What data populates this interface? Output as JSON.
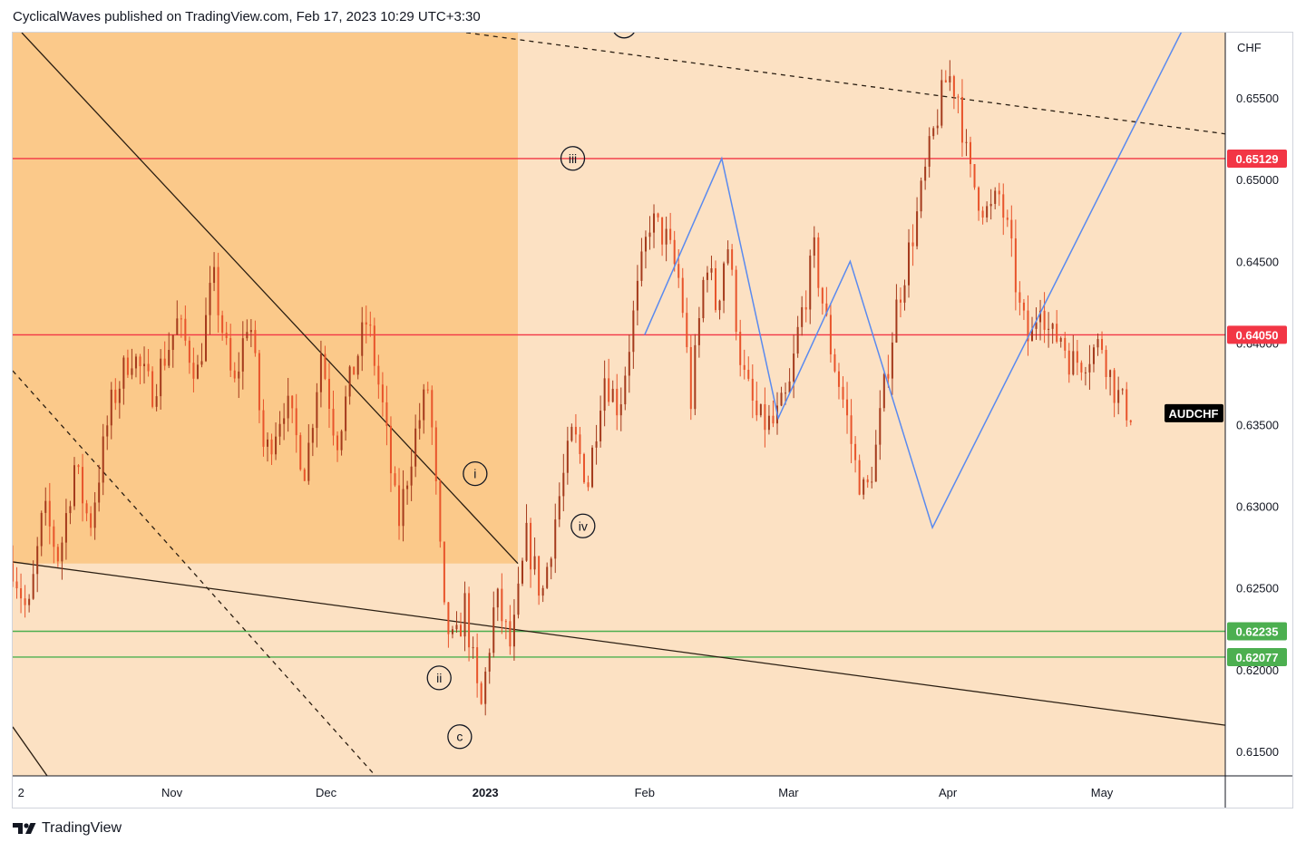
{
  "header": {
    "caption": "CyclicalWaves published on TradingView.com, Feb 17, 2023 10:29 UTC+3:30"
  },
  "footer": {
    "brand": "TradingView",
    "logo_icon": "tradingview-logo-icon"
  },
  "colors": {
    "background": "#fce1c3",
    "shaded_zone": "#fbc98a",
    "candle_up": "#a43a1c",
    "candle_down": "#e8542b",
    "resistance": "#f23645",
    "support": "#4caf50",
    "projection": "#5a8aef",
    "trendline": "#2a1e12"
  },
  "chart_data": {
    "type": "candlestick",
    "symbol": "AUDCHF",
    "currency": "CHF",
    "y_ticks": [
      "0.65500",
      "0.65000",
      "0.64500",
      "0.64000",
      "0.63500",
      "0.63000",
      "0.62500",
      "0.62000",
      "0.61500"
    ],
    "y_tick_values": [
      0.655,
      0.65,
      0.645,
      0.64,
      0.635,
      0.63,
      0.625,
      0.62,
      0.615
    ],
    "ylim": [
      0.6135,
      0.659
    ],
    "x_ticks": [
      {
        "label": "2",
        "date": "2022-10-02"
      },
      {
        "label": "Nov",
        "date": "2022-11-01"
      },
      {
        "label": "Dec",
        "date": "2022-12-01"
      },
      {
        "label": "2023",
        "date": "2023-01-01"
      },
      {
        "label": "Feb",
        "date": "2023-02-01"
      },
      {
        "label": "Mar",
        "date": "2023-03-01"
      },
      {
        "label": "Apr",
        "date": "2023-04-01"
      },
      {
        "label": "May",
        "date": "2023-05-01"
      }
    ],
    "xlim": [
      "2022-10-01",
      "2023-05-25"
    ],
    "last_price_label": "AUDCHF",
    "last_price": 0.6357,
    "horizontal_levels": [
      {
        "label": "0.65129",
        "value": 0.65129,
        "role": "resistance"
      },
      {
        "label": "0.64050",
        "value": 0.6405,
        "role": "resistance"
      },
      {
        "label": "0.62235",
        "value": 0.62235,
        "role": "support"
      },
      {
        "label": "0.62077",
        "value": 0.62077,
        "role": "support"
      },
      {
        "label": "",
        "value": 0.65935,
        "role": "resistance"
      }
    ],
    "price_path": [
      [
        "2022-10-01",
        0.6265
      ],
      [
        "2022-10-04",
        0.6232
      ],
      [
        "2022-10-07",
        0.6298
      ],
      [
        "2022-10-10",
        0.6268
      ],
      [
        "2022-10-13",
        0.6325
      ],
      [
        "2022-10-16",
        0.6288
      ],
      [
        "2022-10-20",
        0.636
      ],
      [
        "2022-10-24",
        0.6395
      ],
      [
        "2022-10-28",
        0.637
      ],
      [
        "2022-11-02",
        0.6412
      ],
      [
        "2022-11-06",
        0.6382
      ],
      [
        "2022-11-09",
        0.644
      ],
      [
        "2022-11-13",
        0.637
      ],
      [
        "2022-11-16",
        0.642
      ],
      [
        "2022-11-19",
        0.633
      ],
      [
        "2022-11-23",
        0.6365
      ],
      [
        "2022-11-27",
        0.6322
      ],
      [
        "2022-11-30",
        0.6395
      ],
      [
        "2022-12-03",
        0.634
      ],
      [
        "2022-12-06",
        0.638
      ],
      [
        "2022-12-09",
        0.6415
      ],
      [
        "2022-12-12",
        0.636
      ],
      [
        "2022-12-15",
        0.6288
      ],
      [
        "2022-12-18",
        0.634
      ],
      [
        "2022-12-21",
        0.6375
      ],
      [
        "2022-12-24",
        0.6232
      ],
      [
        "2022-12-26",
        0.6212
      ],
      [
        "2022-12-28",
        0.624
      ],
      [
        "2022-12-31",
        0.6172
      ],
      [
        "2023-01-03",
        0.6245
      ],
      [
        "2023-01-06",
        0.6212
      ],
      [
        "2023-01-09",
        0.628
      ],
      [
        "2023-01-12",
        0.6245
      ],
      [
        "2023-01-15",
        0.63
      ],
      [
        "2023-01-18",
        0.6345
      ],
      [
        "2023-01-21",
        0.6315
      ],
      [
        "2023-01-24",
        0.6382
      ],
      [
        "2023-01-27",
        0.636
      ],
      [
        "2023-01-30",
        0.642
      ],
      [
        "2023-02-02",
        0.6475
      ],
      [
        "2023-02-05",
        0.6465
      ],
      [
        "2023-02-08",
        0.6435
      ],
      [
        "2023-02-10",
        0.6365
      ],
      [
        "2023-02-13",
        0.6455
      ],
      [
        "2023-02-15",
        0.642
      ],
      [
        "2023-02-17",
        0.6465
      ],
      [
        "2023-02-20",
        0.6382
      ],
      [
        "2023-02-23",
        0.6352
      ],
      [
        "2023-02-26",
        0.635
      ],
      [
        "2023-03-01",
        0.6368
      ],
      [
        "2023-03-03",
        0.641
      ],
      [
        "2023-03-06",
        0.6455
      ],
      [
        "2023-03-09",
        0.64
      ],
      [
        "2023-03-12",
        0.636
      ],
      [
        "2023-03-14",
        0.6325
      ],
      [
        "2023-03-16",
        0.6305
      ],
      [
        "2023-03-18",
        0.6335
      ],
      [
        "2023-03-20",
        0.638
      ],
      [
        "2023-03-22",
        0.6422
      ],
      [
        "2023-03-24",
        0.645
      ],
      [
        "2023-03-26",
        0.6478
      ],
      [
        "2023-03-28",
        0.651
      ],
      [
        "2023-03-30",
        0.654
      ],
      [
        "2023-04-01",
        0.6565
      ],
      [
        "2023-04-03",
        0.6552
      ],
      [
        "2023-04-05",
        0.6505
      ],
      [
        "2023-04-07",
        0.649
      ],
      [
        "2023-04-09",
        0.6478
      ],
      [
        "2023-04-11",
        0.649
      ],
      [
        "2023-04-13",
        0.6462
      ],
      [
        "2023-04-15",
        0.642
      ],
      [
        "2023-04-17",
        0.6398
      ],
      [
        "2023-04-19",
        0.643
      ],
      [
        "2023-04-21",
        0.6402
      ],
      [
        "2023-04-23",
        0.6405
      ],
      [
        "2023-04-25",
        0.6388
      ],
      [
        "2023-04-27",
        0.639
      ],
      [
        "2023-04-29",
        0.6395
      ],
      [
        "2023-05-01",
        0.64
      ],
      [
        "2023-05-03",
        0.6375
      ],
      [
        "2023-05-05",
        0.6362
      ],
      [
        "2023-05-07",
        0.6357
      ]
    ],
    "projection_path": [
      [
        "2023-02-01",
        0.6405
      ],
      [
        "2023-02-16",
        0.6513
      ],
      [
        "2023-02-27",
        0.6354
      ],
      [
        "2023-03-13",
        0.645
      ],
      [
        "2023-03-29",
        0.6287
      ],
      [
        "2023-05-18",
        0.66
      ]
    ],
    "wave_labels": [
      {
        "text": "c",
        "date": "2022-12-27",
        "value": 0.6159
      },
      {
        "text": "i",
        "date": "2022-12-30",
        "value": 0.632
      },
      {
        "text": "ii",
        "date": "2022-12-23",
        "value": 0.6195
      },
      {
        "text": "iii",
        "date": "2023-01-18",
        "value": 0.6513
      },
      {
        "text": "iv",
        "date": "2023-01-20",
        "value": 0.6288
      },
      {
        "text": "v",
        "date": "2023-01-28",
        "value": 0.6594
      }
    ],
    "grid": false
  }
}
